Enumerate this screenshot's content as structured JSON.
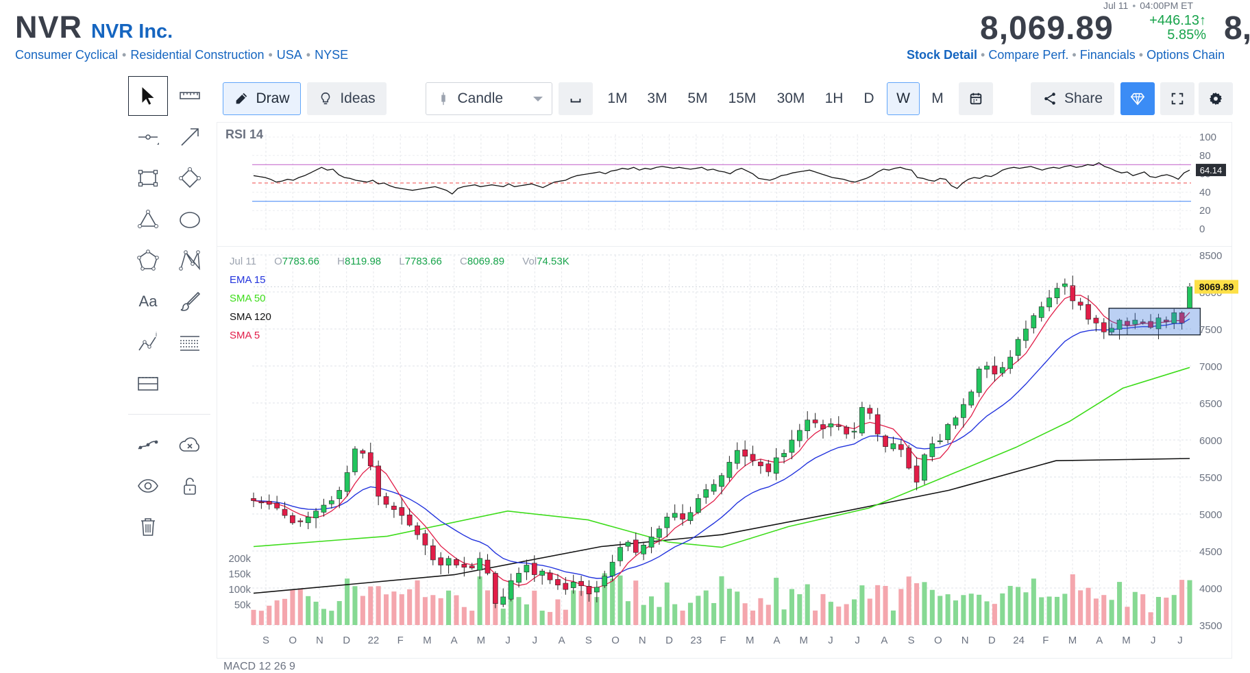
{
  "quote": {
    "ticker": "NVR",
    "company": "NVR Inc.",
    "tags": [
      "Consumer Cyclical",
      "Residential Construction",
      "USA",
      "NYSE"
    ],
    "date": "Jul 11",
    "time": "04:00PM ET",
    "price": "8,069.89",
    "change": "+446.13",
    "change_arrow": "↑",
    "change_pct": "5.85%",
    "price_cut": "8,"
  },
  "nav_links": [
    "Stock Detail",
    "Compare Perf.",
    "Financials",
    "Options Chain"
  ],
  "toolbar": {
    "draw": "Draw",
    "ideas": "Ideas",
    "chart_type": "Candle",
    "timeframes": [
      "1M",
      "3M",
      "5M",
      "15M",
      "30M",
      "1H",
      "D",
      "W",
      "M"
    ],
    "active_timeframe": "W",
    "share": "Share"
  },
  "tools": {
    "text_tool": "Aa"
  },
  "rsi": {
    "title": "RSI 14",
    "value_label": "64.14",
    "value": 64.14,
    "ticks": [
      "100",
      "80",
      "60",
      "40",
      "20",
      "0"
    ],
    "tick_values": [
      100,
      80,
      60,
      40,
      20,
      0
    ],
    "overbought": 70,
    "oversold": 30,
    "mid": 50,
    "series": [
      58,
      57,
      56,
      54,
      51,
      52,
      54,
      53,
      56,
      58,
      61,
      64,
      67,
      64,
      65,
      59,
      56,
      55,
      53,
      52,
      51,
      53,
      49,
      50,
      47,
      45,
      44,
      43,
      42,
      43,
      44,
      45,
      46,
      44,
      42,
      38,
      44,
      46,
      47,
      48,
      46,
      47,
      48,
      47,
      46,
      49,
      46,
      47,
      48,
      49,
      47,
      45,
      48,
      51,
      52,
      53,
      56,
      58,
      59,
      60,
      61,
      62,
      60,
      63,
      64,
      66,
      65,
      67,
      64,
      66,
      65,
      67,
      68,
      67,
      66,
      67,
      66,
      65,
      66,
      67,
      64,
      65,
      63,
      62,
      60,
      64,
      66,
      63,
      60,
      55,
      54,
      53,
      55,
      58,
      59,
      61,
      62,
      63,
      64,
      62,
      60,
      58,
      56,
      55,
      54,
      52,
      51,
      53,
      55,
      58,
      62,
      65,
      64,
      66,
      67,
      65,
      64,
      56,
      55,
      53,
      52,
      55,
      54,
      47,
      44,
      50,
      54,
      56,
      55,
      58,
      57,
      60,
      64,
      66,
      67,
      66,
      67,
      68,
      66,
      64,
      66,
      67,
      66,
      68,
      69,
      67,
      68,
      70,
      69,
      72,
      68,
      66,
      63,
      61,
      62,
      58,
      60,
      62,
      57,
      56,
      58,
      59,
      57,
      54,
      61,
      64
    ]
  },
  "ohlc_legend": {
    "date": "Jul 11",
    "o_label": "O",
    "o": "7783.66",
    "h_label": "H",
    "h": "8119.98",
    "l_label": "L",
    "l": "7783.66",
    "c_label": "C",
    "c": "8069.89",
    "vol_label": "Vol",
    "vol": "74.53K"
  },
  "ma_legend": [
    "EMA 15",
    "SMA 50",
    "SMA 120",
    "SMA 5"
  ],
  "volume_ticks": [
    "200k",
    "150k",
    "100k",
    "50k"
  ],
  "volume_tick_values": [
    200000,
    150000,
    100000,
    50000
  ],
  "last_price_label": "8069.89",
  "macd_title": "MACD 12 26 9",
  "colors": {
    "up": "#22c55e",
    "down": "#e11d48",
    "ema15": "#2233dd",
    "sma50": "#3ddc1a",
    "sma120": "#111111",
    "sma5": "#e11d48",
    "rsi_ob": "#c05cc8",
    "rsi_os": "#3b82f6",
    "accent": "#3b8cf5",
    "vol_up": "#86d993",
    "vol_down": "#f4a6ad"
  },
  "chart_data": {
    "type": "candlestick",
    "title": "NVR Inc. weekly",
    "ylim": [
      3500,
      8500
    ],
    "y_ticks": [
      8500,
      8000,
      7500,
      7000,
      6500,
      6000,
      5500,
      5000,
      4500,
      4000,
      3500
    ],
    "x_labels": [
      "S",
      "O",
      "N",
      "D",
      "22",
      "F",
      "M",
      "A",
      "M",
      "J",
      "J",
      "A",
      "S",
      "O",
      "N",
      "D",
      "23",
      "F",
      "M",
      "A",
      "M",
      "J",
      "J",
      "A",
      "S",
      "O",
      "N",
      "D",
      "24",
      "F",
      "M",
      "A",
      "M",
      "J",
      "J"
    ],
    "close": [
      5180,
      5150,
      5130,
      5080,
      4980,
      4880,
      4900,
      4960,
      5040,
      5120,
      5180,
      5320,
      5560,
      5880,
      5820,
      5650,
      5240,
      5130,
      5060,
      4980,
      4850,
      4720,
      4580,
      4380,
      4310,
      4400,
      4310,
      4280,
      4270,
      4400,
      4200,
      3790,
      3880,
      4100,
      4200,
      4310,
      4180,
      4230,
      4110,
      4040,
      3980,
      4080,
      4030,
      3920,
      4010,
      4160,
      4350,
      4550,
      4620,
      4480,
      4580,
      4690,
      4800,
      4960,
      5010,
      4930,
      5020,
      5210,
      5330,
      5400,
      5520,
      5700,
      5860,
      5780,
      5720,
      5650,
      5570,
      5760,
      5820,
      6000,
      6130,
      6270,
      6230,
      6150,
      6220,
      6190,
      6080,
      6120,
      6440,
      6360,
      6080,
      5910,
      5950,
      5870,
      5620,
      5430,
      5800,
      5950,
      5990,
      6210,
      6300,
      6480,
      6650,
      6960,
      7000,
      6890,
      6980,
      7120,
      7360,
      7500,
      7680,
      7800,
      7920,
      8050,
      8110,
      7880,
      7820,
      7630,
      7580,
      7460,
      7510,
      7620,
      7550,
      7620,
      7580,
      7520,
      7650,
      7600,
      7720,
      7580,
      8069.89
    ],
    "sma50_path": [
      [
        0,
        4560
      ],
      [
        20,
        4700
      ],
      [
        38,
        5040
      ],
      [
        50,
        4920
      ],
      [
        62,
        4620
      ],
      [
        70,
        4550
      ],
      [
        80,
        4830
      ],
      [
        92,
        5080
      ],
      [
        102,
        5450
      ],
      [
        114,
        5900
      ],
      [
        122,
        6250
      ],
      [
        130,
        6700
      ],
      [
        140,
        6980
      ]
    ],
    "sma120_path": [
      [
        0,
        3930
      ],
      [
        30,
        4180
      ],
      [
        52,
        4560
      ],
      [
        70,
        4720
      ],
      [
        88,
        5030
      ],
      [
        104,
        5320
      ],
      [
        120,
        5720
      ],
      [
        140,
        5750
      ]
    ],
    "selection_box": {
      "from_index": 110,
      "to_index": 121,
      "low": 7420,
      "high": 7780
    }
  }
}
